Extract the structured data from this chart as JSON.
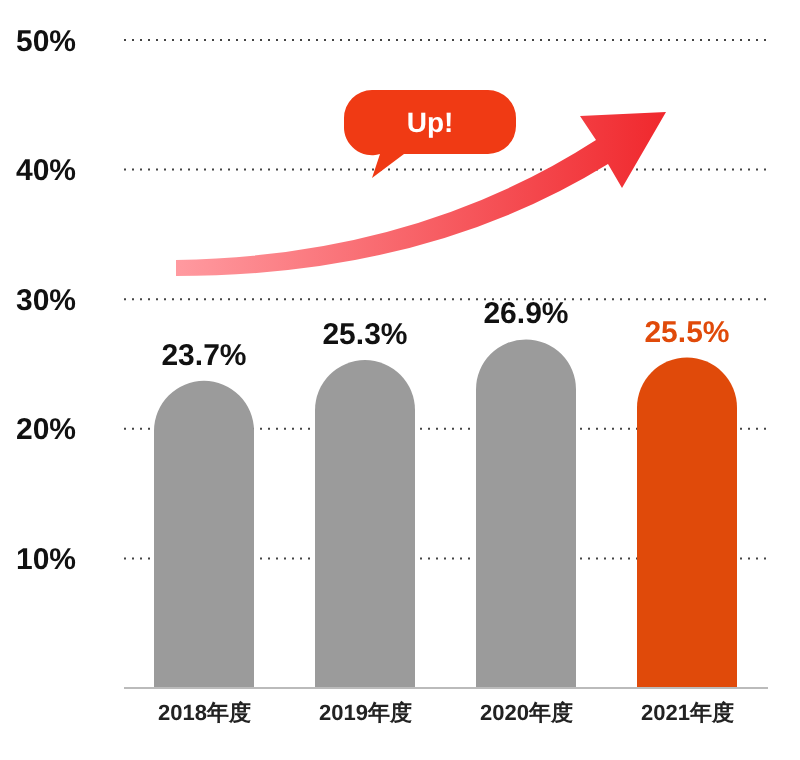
{
  "chart_data": {
    "type": "bar",
    "categories": [
      "2018年度",
      "2019年度",
      "2020年度",
      "2021年度"
    ],
    "values": [
      23.7,
      25.3,
      26.9,
      25.5
    ],
    "colors": [
      "#9b9b9b",
      "#9b9b9b",
      "#9b9b9b",
      "#e04a0a"
    ],
    "value_labels": [
      "23.7%",
      "25.3%",
      "26.9%",
      "25.5%"
    ],
    "ylim": [
      0,
      50
    ],
    "yticks": [
      {
        "value": 10,
        "label": "10%"
      },
      {
        "value": 20,
        "label": "20%"
      },
      {
        "value": 30,
        "label": "30%"
      },
      {
        "value": 40,
        "label": "40%"
      },
      {
        "value": 50,
        "label": "50%"
      }
    ],
    "grid": "y",
    "annotations": [
      "Up!"
    ]
  }
}
